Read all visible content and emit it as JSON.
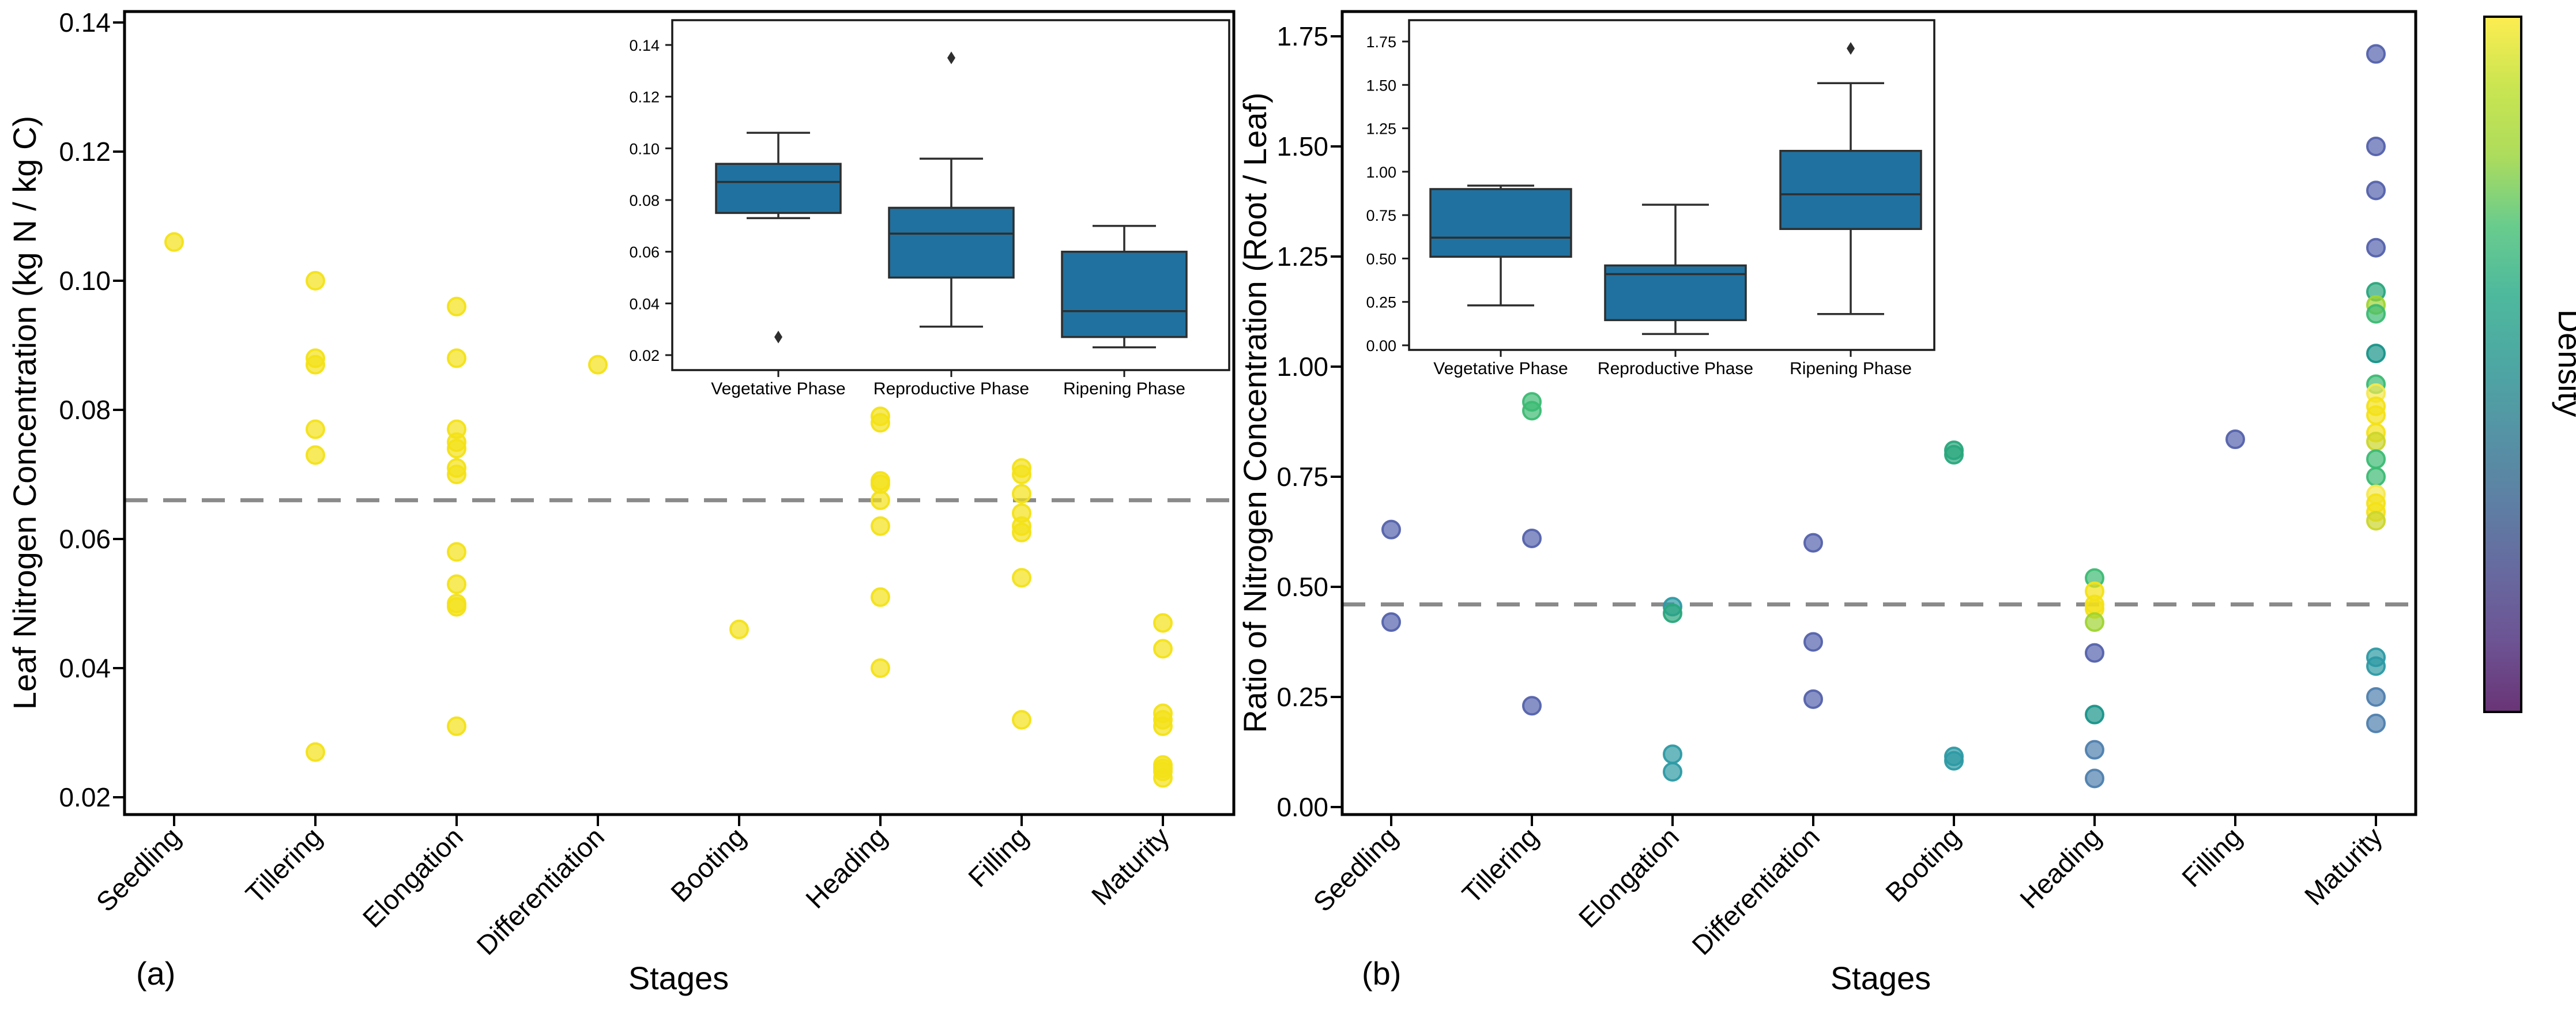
{
  "figure": {
    "background": "#ffffff",
    "colorbar": {
      "label": "Density",
      "gradient_top_to_bottom": [
        "#fded51",
        "#cae551",
        "#addc5c",
        "#69cc8d",
        "#4eb99d",
        "#4da7a3",
        "#5593a5",
        "#5e7fa4",
        "#67699f",
        "#6d5393",
        "#693476"
      ]
    },
    "colors": {
      "yellow": "#f3e118",
      "pale_yellow": "#f5e84e",
      "olive": "#ccd62b",
      "light_green": "#9fd433",
      "green": "#3cba73",
      "teal_green": "#2aa67d",
      "dark_teal": "#189489",
      "teal": "#2d9aa4",
      "steel_blue": "#4e7fae",
      "violet_blue": "#5462ac",
      "box_fill": "#20719f",
      "dashed_line": "#8a8a8a"
    }
  },
  "chart_data": [
    {
      "id": "a",
      "type": "scatter",
      "corner_label": "(a)",
      "xlabel": "Stages",
      "ylabel": "Leaf Nitrogen Concentration (kg N / kg C)",
      "categories": [
        "Seedling",
        "Tillering",
        "Elongation",
        "Differentiation",
        "Booting",
        "Heading",
        "Filling",
        "Maturity"
      ],
      "yticks": [
        "0.02",
        "0.04",
        "0.06",
        "0.08",
        "0.10",
        "0.12",
        "0.14"
      ],
      "ytick_values": [
        0.02,
        0.04,
        0.06,
        0.08,
        0.1,
        0.12,
        0.14
      ],
      "ylim": [
        0.017,
        0.142
      ],
      "grid": false,
      "legend": "none",
      "reference_line": 0.066,
      "point_color": "yellow",
      "series": [
        {
          "category": "Seedling",
          "values": [
            0.106
          ]
        },
        {
          "category": "Tillering",
          "values": [
            0.1,
            0.088,
            0.087,
            0.077,
            0.073,
            0.027
          ]
        },
        {
          "category": "Elongation",
          "values": [
            0.096,
            0.088,
            0.077,
            0.075,
            0.074,
            0.071,
            0.07,
            0.058,
            0.053,
            0.05,
            0.0495,
            0.031
          ]
        },
        {
          "category": "Differentiation",
          "values": [
            0.087
          ]
        },
        {
          "category": "Booting",
          "values": [
            0.046
          ]
        },
        {
          "category": "Heading",
          "values": [
            0.079,
            0.078,
            0.069,
            0.0685,
            0.066,
            0.062,
            0.051,
            0.04
          ]
        },
        {
          "category": "Filling",
          "values": [
            0.071,
            0.07,
            0.067,
            0.064,
            0.062,
            0.061,
            0.054,
            0.032
          ]
        },
        {
          "category": "Maturity",
          "values": [
            0.047,
            0.043,
            0.033,
            0.032,
            0.031,
            0.025,
            0.0245,
            0.024,
            0.023
          ]
        }
      ],
      "inset": {
        "type": "box",
        "categories": [
          "Vegetative Phase",
          "Reproductive Phase",
          "Ripening Phase"
        ],
        "yticks": [
          "0.02",
          "0.04",
          "0.06",
          "0.08",
          "0.10",
          "0.12",
          "0.14"
        ],
        "ytick_values": [
          0.02,
          0.04,
          0.06,
          0.08,
          0.1,
          0.12,
          0.14
        ],
        "boxes": [
          {
            "whisker_low": 0.073,
            "q1": 0.075,
            "median": 0.087,
            "q3": 0.094,
            "whisker_high": 0.106,
            "outliers": [
              0.027
            ]
          },
          {
            "whisker_low": 0.031,
            "q1": 0.05,
            "median": 0.067,
            "q3": 0.077,
            "whisker_high": 0.096,
            "outliers": [
              0.135
            ]
          },
          {
            "whisker_low": 0.023,
            "q1": 0.027,
            "median": 0.037,
            "q3": 0.06,
            "whisker_high": 0.07,
            "outliers": []
          }
        ]
      }
    },
    {
      "id": "b",
      "type": "scatter",
      "corner_label": "(b)",
      "xlabel": "Stages",
      "ylabel": "Ratio of Nitrogen Concentration (Root / Leaf)",
      "categories": [
        "Seedling",
        "Tillering",
        "Elongation",
        "Differentiation",
        "Booting",
        "Heading",
        "Filling",
        "Maturity"
      ],
      "yticks": [
        "0.00",
        "0.25",
        "0.50",
        "0.75",
        "1.00",
        "1.25",
        "1.50",
        "1.75"
      ],
      "ytick_values": [
        0.0,
        0.25,
        0.5,
        0.75,
        1.0,
        1.25,
        1.5,
        1.75
      ],
      "ylim": [
        -0.02,
        1.81
      ],
      "grid": false,
      "legend": "colorbar-density",
      "reference_line": 0.46,
      "series": [
        {
          "category": "Seedling",
          "values": [
            {
              "v": 0.63,
              "c": "violet_blue"
            },
            {
              "v": 0.42,
              "c": "violet_blue"
            }
          ]
        },
        {
          "category": "Tillering",
          "values": [
            {
              "v": 0.92,
              "c": "green"
            },
            {
              "v": 0.9,
              "c": "green"
            },
            {
              "v": 0.61,
              "c": "violet_blue"
            },
            {
              "v": 0.23,
              "c": "violet_blue"
            }
          ]
        },
        {
          "category": "Elongation",
          "values": [
            {
              "v": 0.455,
              "c": "teal"
            },
            {
              "v": 0.44,
              "c": "teal_green"
            },
            {
              "v": 0.12,
              "c": "teal"
            },
            {
              "v": 0.08,
              "c": "teal"
            }
          ]
        },
        {
          "category": "Differentiation",
          "values": [
            {
              "v": 0.6,
              "c": "violet_blue"
            },
            {
              "v": 0.375,
              "c": "violet_blue"
            },
            {
              "v": 0.245,
              "c": "violet_blue"
            }
          ]
        },
        {
          "category": "Booting",
          "values": [
            {
              "v": 0.81,
              "c": "teal_green"
            },
            {
              "v": 0.8,
              "c": "teal_green"
            },
            {
              "v": 0.115,
              "c": "teal"
            },
            {
              "v": 0.105,
              "c": "teal"
            }
          ]
        },
        {
          "category": "Heading",
          "values": [
            {
              "v": 0.52,
              "c": "green"
            },
            {
              "v": 0.49,
              "c": "yellow"
            },
            {
              "v": 0.46,
              "c": "yellow"
            },
            {
              "v": 0.45,
              "c": "yellow"
            },
            {
              "v": 0.42,
              "c": "light_green"
            },
            {
              "v": 0.35,
              "c": "violet_blue"
            },
            {
              "v": 0.21,
              "c": "dark_teal"
            },
            {
              "v": 0.13,
              "c": "steel_blue"
            },
            {
              "v": 0.065,
              "c": "steel_blue"
            }
          ]
        },
        {
          "category": "Filling",
          "values": [
            {
              "v": 0.835,
              "c": "violet_blue"
            }
          ]
        },
        {
          "category": "Maturity",
          "values": [
            {
              "v": 1.71,
              "c": "violet_blue"
            },
            {
              "v": 1.5,
              "c": "violet_blue"
            },
            {
              "v": 1.4,
              "c": "violet_blue"
            },
            {
              "v": 1.27,
              "c": "violet_blue"
            },
            {
              "v": 1.17,
              "c": "teal_green"
            },
            {
              "v": 1.14,
              "c": "light_green"
            },
            {
              "v": 1.12,
              "c": "green"
            },
            {
              "v": 1.03,
              "c": "dark_teal"
            },
            {
              "v": 0.96,
              "c": "green"
            },
            {
              "v": 0.94,
              "c": "pale_yellow"
            },
            {
              "v": 0.91,
              "c": "yellow"
            },
            {
              "v": 0.89,
              "c": "yellow"
            },
            {
              "v": 0.85,
              "c": "yellow"
            },
            {
              "v": 0.83,
              "c": "olive"
            },
            {
              "v": 0.79,
              "c": "green"
            },
            {
              "v": 0.75,
              "c": "green"
            },
            {
              "v": 0.71,
              "c": "pale_yellow"
            },
            {
              "v": 0.69,
              "c": "yellow"
            },
            {
              "v": 0.67,
              "c": "yellow"
            },
            {
              "v": 0.65,
              "c": "olive"
            },
            {
              "v": 0.34,
              "c": "teal"
            },
            {
              "v": 0.32,
              "c": "teal"
            },
            {
              "v": 0.25,
              "c": "steel_blue"
            },
            {
              "v": 0.19,
              "c": "steel_blue"
            }
          ]
        }
      ],
      "inset": {
        "type": "box",
        "categories": [
          "Vegetative Phase",
          "Reproductive Phase",
          "Ripening Phase"
        ],
        "yticks": [
          "0.00",
          "0.25",
          "0.50",
          "0.75",
          "1.00",
          "1.25",
          "1.50",
          "1.75"
        ],
        "ytick_values": [
          0.0,
          0.25,
          0.5,
          0.75,
          1.0,
          1.25,
          1.5,
          1.75
        ],
        "boxes": [
          {
            "whisker_low": 0.23,
            "q1": 0.51,
            "median": 0.62,
            "q3": 0.9,
            "whisker_high": 0.92,
            "outliers": []
          },
          {
            "whisker_low": 0.065,
            "q1": 0.145,
            "median": 0.41,
            "q3": 0.46,
            "whisker_high": 0.81,
            "outliers": []
          },
          {
            "whisker_low": 0.18,
            "q1": 0.67,
            "median": 0.87,
            "q3": 1.12,
            "whisker_high": 1.51,
            "outliers": [
              1.71
            ]
          }
        ]
      }
    }
  ]
}
